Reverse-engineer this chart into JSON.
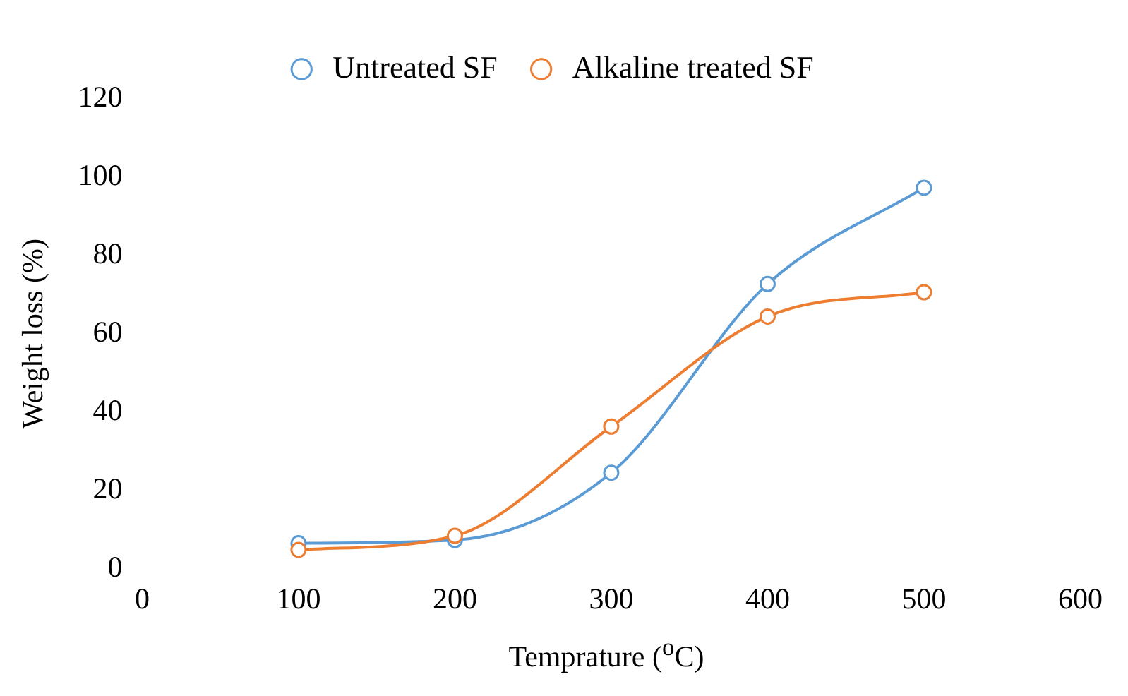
{
  "chart_data": {
    "type": "line",
    "xlabel": "Temprature ($^{o}$C)",
    "ylabel": "Weight loss (%)",
    "x": [
      100,
      200,
      300,
      400,
      500
    ],
    "series": [
      {
        "name": "Untreated SF",
        "color": "#5b9bd5",
        "values": [
          6.5,
          7.3,
          24.5,
          72.7,
          97.3
        ]
      },
      {
        "name": "Alkaline treated SF",
        "color": "#ed7d31",
        "values": [
          4.8,
          8.4,
          36.3,
          64.4,
          70.6
        ]
      }
    ],
    "xlim": [
      0,
      600
    ],
    "xticks": [
      0,
      100,
      200,
      300,
      400,
      500,
      600
    ],
    "ylim": [
      0,
      120
    ],
    "yticks": [
      0,
      20,
      40,
      60,
      80,
      100,
      120
    ],
    "grid": false,
    "legend": "top",
    "marker": "circle",
    "line_style": "solid"
  }
}
